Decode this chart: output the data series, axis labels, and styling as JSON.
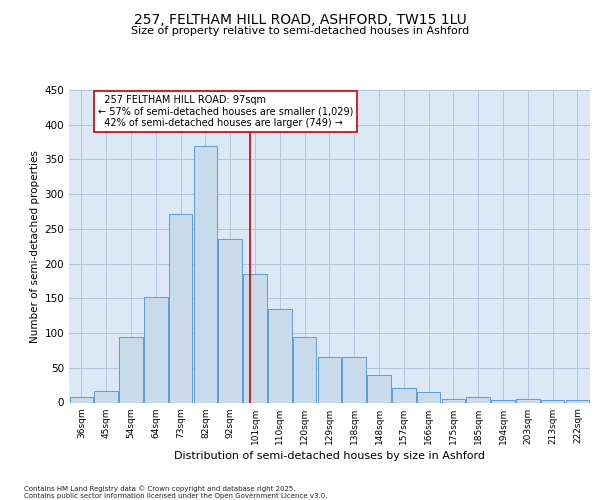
{
  "title1": "257, FELTHAM HILL ROAD, ASHFORD, TW15 1LU",
  "title2": "Size of property relative to semi-detached houses in Ashford",
  "xlabel": "Distribution of semi-detached houses by size in Ashford",
  "ylabel": "Number of semi-detached properties",
  "categories": [
    "36sqm",
    "45sqm",
    "54sqm",
    "64sqm",
    "73sqm",
    "82sqm",
    "92sqm",
    "101sqm",
    "110sqm",
    "120sqm",
    "129sqm",
    "138sqm",
    "148sqm",
    "157sqm",
    "166sqm",
    "175sqm",
    "185sqm",
    "194sqm",
    "203sqm",
    "213sqm",
    "222sqm"
  ],
  "values": [
    8,
    16,
    95,
    152,
    272,
    370,
    235,
    185,
    135,
    95,
    65,
    65,
    40,
    21,
    15,
    5,
    8,
    4,
    5,
    4,
    4
  ],
  "bar_color": "#c9daea",
  "bar_edge_color": "#5b9bd5",
  "property_label": "257 FELTHAM HILL ROAD: 97sqm",
  "pct_smaller": 57,
  "pct_smaller_n": 1029,
  "pct_larger": 42,
  "pct_larger_n": 749,
  "vline_color": "#cc0000",
  "vline_position": 6.78,
  "ylim": [
    0,
    450
  ],
  "yticks": [
    0,
    50,
    100,
    150,
    200,
    250,
    300,
    350,
    400,
    450
  ],
  "grid_color": "#b0c4de",
  "bg_color": "#dce8f5",
  "footer1": "Contains HM Land Registry data © Crown copyright and database right 2025.",
  "footer2": "Contains public sector information licensed under the Open Government Licence v3.0."
}
